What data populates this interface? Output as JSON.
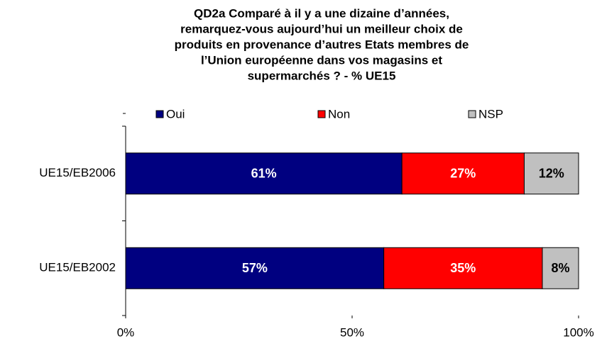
{
  "chart_data": {
    "type": "stacked_barh",
    "title": [
      "QD2a Comparé à il y a une dizaine d’années,",
      "remarquez-vous aujourd’hui un meilleur choix de",
      "produits en provenance d’autres Etats membres de",
      "l’Union européenne dans vos magasins et",
      "supermarchés ?  - % UE15"
    ],
    "categories": [
      "UE15/EB2006",
      "UE15/EB2002"
    ],
    "series": [
      {
        "name": "Oui",
        "color": "#000080",
        "values": [
          61,
          57
        ],
        "value_labels": [
          "61%",
          "57%"
        ]
      },
      {
        "name": "Non",
        "color": "#ff0000",
        "values": [
          27,
          35
        ],
        "value_labels": [
          "27%",
          "35%"
        ]
      },
      {
        "name": "NSP",
        "color": "#c0c0c0",
        "values": [
          12,
          8
        ],
        "value_labels": [
          "12%",
          "8%"
        ]
      }
    ],
    "xlim": [
      0,
      100
    ],
    "xticks": [
      {
        "value": 0,
        "label": "0%"
      },
      {
        "value": 50,
        "label": "50%"
      },
      {
        "value": 100,
        "label": "100%"
      }
    ],
    "legend": "top"
  }
}
